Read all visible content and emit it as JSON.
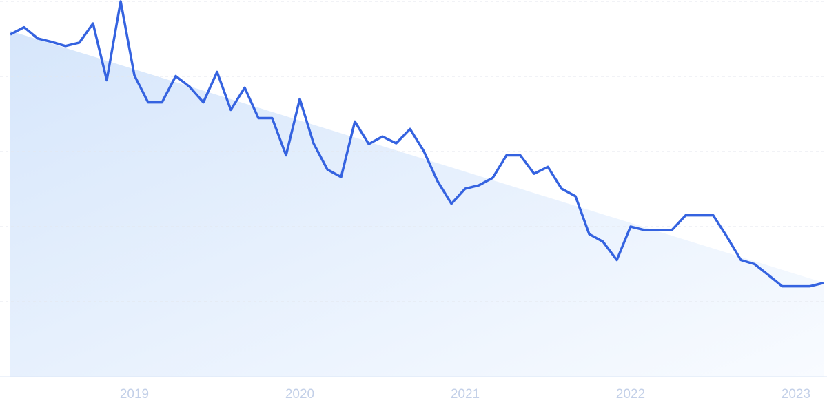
{
  "chart_data": {
    "type": "line",
    "x": [
      2018.25,
      2018.333,
      2018.417,
      2018.5,
      2018.583,
      2018.667,
      2018.75,
      2018.833,
      2018.917,
      2019,
      2019.083,
      2019.167,
      2019.25,
      2019.333,
      2019.417,
      2019.5,
      2019.583,
      2019.667,
      2019.75,
      2019.833,
      2019.917,
      2020,
      2020.083,
      2020.167,
      2020.25,
      2020.333,
      2020.417,
      2020.5,
      2020.583,
      2020.667,
      2020.75,
      2020.833,
      2020.917,
      2021,
      2021.083,
      2021.167,
      2021.25,
      2021.333,
      2021.417,
      2021.5,
      2021.583,
      2021.667,
      2021.75,
      2021.833,
      2021.917,
      2022,
      2022.083,
      2022.167,
      2022.25,
      2022.333,
      2022.417,
      2022.5,
      2022.583,
      2022.667,
      2022.75,
      2022.833,
      2022.917,
      2023,
      2023.083,
      2023.167
    ],
    "series": [
      {
        "color": "#3563e0",
        "values": [
          91.2,
          93.1,
          90.1,
          89.2,
          88.1,
          89.0,
          94.1,
          79.0,
          100,
          80.3,
          73.1,
          73.1,
          80.1,
          77.3,
          73.1,
          81.2,
          71.1,
          77.0,
          68.9,
          68.9,
          59.0,
          74.0,
          62.2,
          55.2,
          53.2,
          68.0,
          62.0,
          64.0,
          62.2,
          66.0,
          60.1,
          52.1,
          46.1,
          50.1,
          51.0,
          53.0,
          59.0,
          59.0,
          54.1,
          55.9,
          50.1,
          48.1,
          38.0,
          36.0,
          31.1,
          40.0,
          39.1,
          39.1,
          39.1,
          43.0,
          43.0,
          43.0,
          37.3,
          31.1,
          30.0,
          27.1,
          24.1,
          24.1,
          24.1,
          25.0
        ]
      }
    ],
    "xlim": [
      2018.25,
      2023.167
    ],
    "xticks": [
      2019,
      2020,
      2021,
      2022,
      2023
    ],
    "ylim": [
      0,
      100
    ],
    "yticks": [
      0,
      20,
      40,
      60,
      80,
      100
    ],
    "grid": true,
    "trend": true
  }
}
